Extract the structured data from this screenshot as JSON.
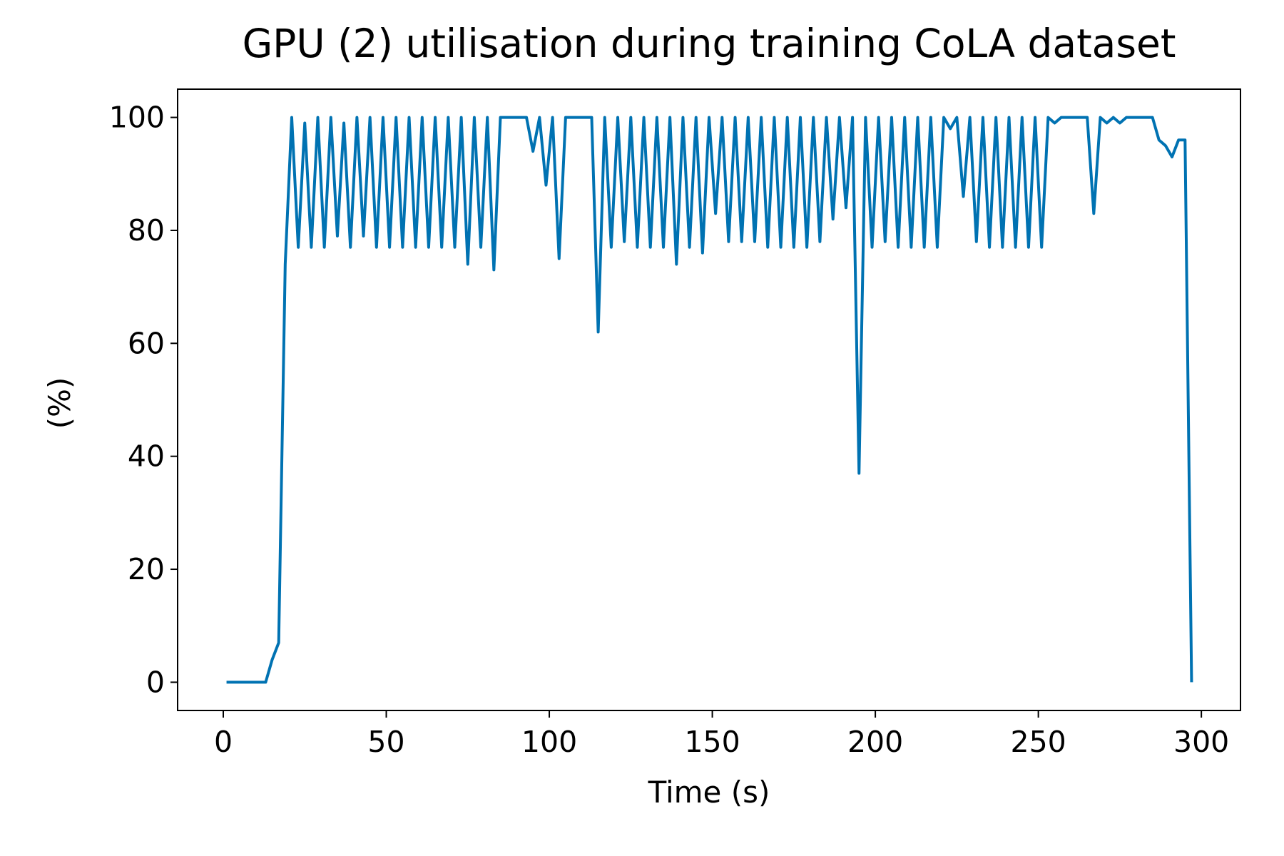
{
  "chart_data": {
    "type": "line",
    "title": "GPU (2) utilisation during training CoLA dataset",
    "xlabel": "Time (s)",
    "ylabel": "(%)",
    "color": "#0072b2",
    "x": [
      1,
      3,
      5,
      7,
      9,
      11,
      13,
      15,
      17,
      19,
      21,
      23,
      25,
      27,
      29,
      31,
      33,
      35,
      37,
      39,
      41,
      43,
      45,
      47,
      49,
      51,
      53,
      55,
      57,
      59,
      61,
      63,
      65,
      67,
      69,
      71,
      73,
      75,
      77,
      79,
      81,
      83,
      85,
      87,
      89,
      91,
      93,
      95,
      97,
      99,
      101,
      103,
      105,
      107,
      109,
      111,
      113,
      115,
      117,
      119,
      121,
      123,
      125,
      127,
      129,
      131,
      133,
      135,
      137,
      139,
      141,
      143,
      145,
      147,
      149,
      151,
      153,
      155,
      157,
      159,
      161,
      163,
      165,
      167,
      169,
      171,
      173,
      175,
      177,
      179,
      181,
      183,
      185,
      187,
      189,
      191,
      193,
      195,
      197,
      199,
      201,
      203,
      205,
      207,
      209,
      211,
      213,
      215,
      217,
      219,
      221,
      223,
      225,
      227,
      229,
      231,
      233,
      235,
      237,
      239,
      241,
      243,
      245,
      247,
      249,
      251,
      253,
      255,
      257,
      259,
      261,
      263,
      265,
      267,
      269,
      271,
      273,
      275,
      277,
      279,
      281,
      283,
      285,
      287,
      289,
      291,
      293,
      295,
      297
    ],
    "values": [
      0,
      0,
      0,
      0,
      0,
      0,
      0,
      4,
      7,
      74,
      100,
      77,
      99,
      77,
      100,
      77,
      100,
      79,
      99,
      77,
      100,
      79,
      100,
      77,
      100,
      77,
      100,
      77,
      100,
      77,
      100,
      77,
      100,
      77,
      100,
      77,
      100,
      74,
      100,
      77,
      100,
      73,
      100,
      100,
      100,
      100,
      100,
      94,
      100,
      88,
      100,
      75,
      100,
      100,
      100,
      100,
      100,
      62,
      100,
      77,
      100,
      78,
      100,
      77,
      100,
      77,
      100,
      77,
      100,
      74,
      100,
      77,
      100,
      76,
      100,
      83,
      100,
      78,
      100,
      78,
      100,
      78,
      100,
      77,
      100,
      77,
      100,
      77,
      100,
      77,
      100,
      78,
      100,
      82,
      100,
      84,
      100,
      37,
      100,
      77,
      100,
      78,
      100,
      77,
      100,
      77,
      100,
      77,
      100,
      77,
      100,
      98,
      100,
      86,
      100,
      78,
      100,
      77,
      100,
      77,
      100,
      77,
      100,
      77,
      100,
      77,
      100,
      99,
      100,
      100,
      100,
      100,
      100,
      83,
      100,
      99,
      100,
      99,
      100,
      100,
      100,
      100,
      100,
      96,
      95,
      93,
      96,
      96,
      0
    ],
    "xlim": [
      -14,
      312
    ],
    "ylim": [
      -5,
      105
    ],
    "xticks": [
      0,
      50,
      100,
      150,
      200,
      250,
      300
    ],
    "yticks": [
      0,
      20,
      40,
      60,
      80,
      100
    ]
  }
}
